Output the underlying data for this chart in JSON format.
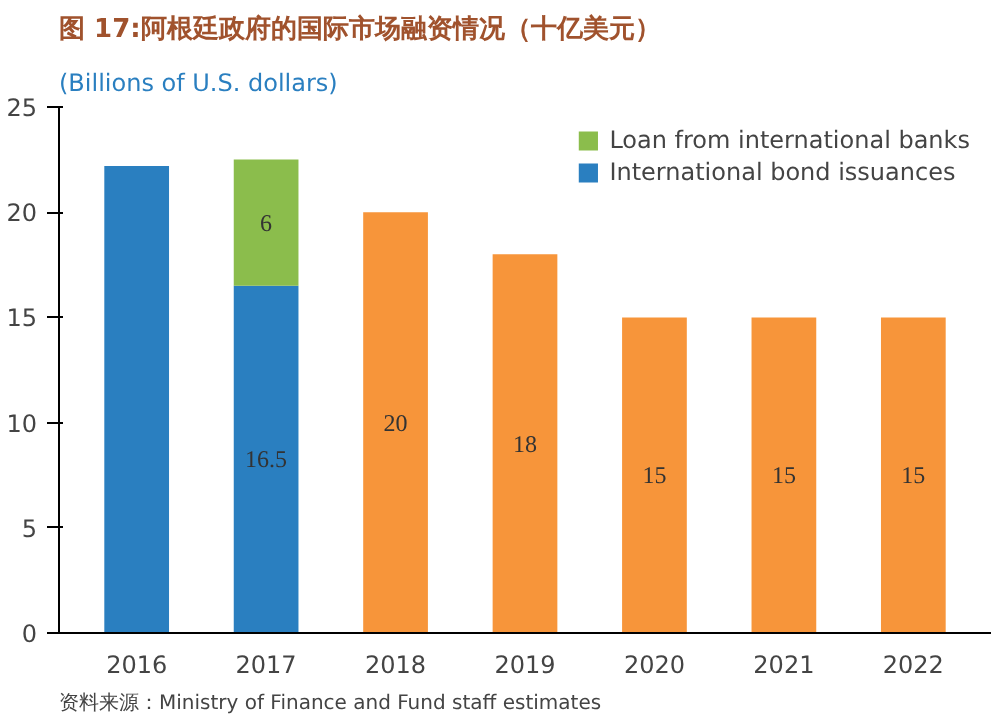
{
  "chart_data": {
    "type": "bar",
    "title": "图 17:阿根廷政府的国际市场融资情况（十亿美元）",
    "ylabel": "(Billions of U.S. dollars)",
    "categories": [
      "2016",
      "2017",
      "2018",
      "2019",
      "2020",
      "2021",
      "2022"
    ],
    "stacked": true,
    "series": [
      {
        "name": "International bond issuances",
        "color": "#2a7fc0",
        "values": [
          22.2,
          16.5,
          null,
          null,
          null,
          null,
          null
        ],
        "value_labels": [
          null,
          "16.5",
          null,
          null,
          null,
          null,
          null
        ]
      },
      {
        "name": "Loan from international banks",
        "color": "#8bbd4c",
        "values": [
          null,
          6,
          null,
          null,
          null,
          null,
          null
        ],
        "value_labels": [
          null,
          "6",
          null,
          null,
          null,
          null,
          null
        ]
      },
      {
        "color": "#f7953a",
        "values": [
          null,
          null,
          20,
          18,
          15,
          15,
          15
        ],
        "value_labels": [
          null,
          null,
          "20",
          "18",
          "15",
          "15",
          "15"
        ]
      }
    ],
    "ylim": [
      0,
      25
    ],
    "yticks": [
      0,
      5,
      10,
      15,
      20,
      25
    ],
    "grid": false,
    "legend": "top right",
    "annotations": [
      "资料来源：Ministry of Finance and Fund staff estimates"
    ]
  }
}
